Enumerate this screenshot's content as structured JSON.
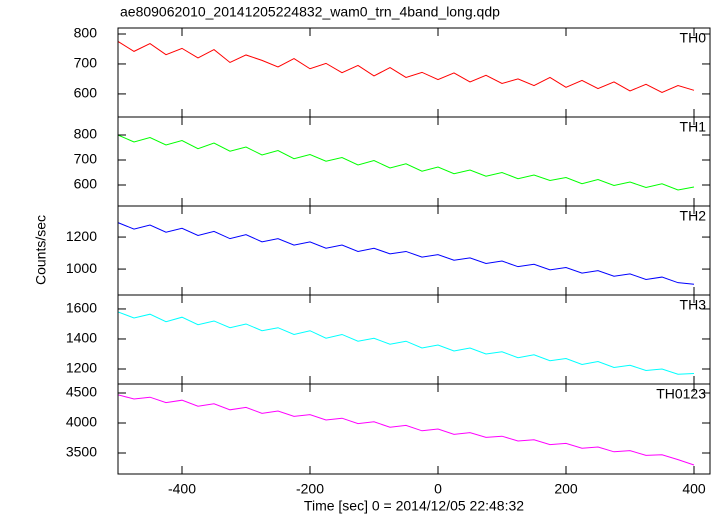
{
  "title": "ae809062010_20141205224832_wam0_trn_4band_long.qdp",
  "xlabel": "Time [sec] 0 = 2014/12/05 22:48:32",
  "ylabel": "Counts/sec",
  "chart_data": [
    {
      "type": "line",
      "label": "TH0",
      "color": "#ff0000",
      "xlim": [
        -500,
        425
      ],
      "xticks": [
        -400,
        -200,
        0,
        200,
        400
      ],
      "ylim": [
        523,
        820
      ],
      "yticks": [
        600,
        700,
        800
      ],
      "x": [
        -500,
        -475,
        -450,
        -425,
        -400,
        -375,
        -350,
        -325,
        -300,
        -275,
        -250,
        -225,
        -200,
        -175,
        -150,
        -125,
        -100,
        -75,
        -50,
        -25,
        0,
        25,
        50,
        75,
        100,
        125,
        150,
        175,
        200,
        225,
        250,
        275,
        300,
        325,
        350,
        375,
        400
      ],
      "values": [
        775,
        742,
        768,
        731,
        752,
        720,
        748,
        705,
        730,
        712,
        690,
        718,
        684,
        702,
        671,
        695,
        660,
        688,
        655,
        672,
        648,
        670,
        640,
        662,
        635,
        650,
        628,
        655,
        622,
        645,
        618,
        640,
        610,
        632,
        605,
        628,
        612
      ]
    },
    {
      "type": "line",
      "label": "TH1",
      "color": "#00ff00",
      "xlim": [
        -500,
        425
      ],
      "xticks": [
        -400,
        -200,
        0,
        200,
        400
      ],
      "ylim": [
        516,
        872
      ],
      "yticks": [
        600,
        700,
        800
      ],
      "x": [
        -500,
        -475,
        -450,
        -425,
        -400,
        -375,
        -350,
        -325,
        -300,
        -275,
        -250,
        -225,
        -200,
        -175,
        -150,
        -125,
        -100,
        -75,
        -50,
        -25,
        0,
        25,
        50,
        75,
        100,
        125,
        150,
        175,
        200,
        225,
        250,
        275,
        300,
        325,
        350,
        375,
        400
      ],
      "values": [
        800,
        772,
        790,
        760,
        778,
        745,
        768,
        735,
        752,
        720,
        738,
        705,
        722,
        695,
        710,
        680,
        698,
        668,
        685,
        655,
        672,
        645,
        660,
        635,
        650,
        625,
        640,
        618,
        630,
        605,
        622,
        598,
        612,
        590,
        605,
        580,
        592
      ]
    },
    {
      "type": "line",
      "label": "TH2",
      "color": "#0000ff",
      "xlim": [
        -500,
        425
      ],
      "xticks": [
        -400,
        -200,
        0,
        200,
        400
      ],
      "ylim": [
        838,
        1394
      ],
      "yticks": [
        1000,
        1200
      ],
      "x": [
        -500,
        -475,
        -450,
        -425,
        -400,
        -375,
        -350,
        -325,
        -300,
        -275,
        -250,
        -225,
        -200,
        -175,
        -150,
        -125,
        -100,
        -75,
        -50,
        -25,
        0,
        25,
        50,
        75,
        100,
        125,
        150,
        175,
        200,
        225,
        250,
        275,
        300,
        325,
        350,
        375,
        400
      ],
      "values": [
        1290,
        1250,
        1275,
        1230,
        1255,
        1210,
        1235,
        1190,
        1215,
        1170,
        1190,
        1150,
        1170,
        1130,
        1150,
        1110,
        1130,
        1095,
        1110,
        1075,
        1090,
        1055,
        1070,
        1035,
        1050,
        1015,
        1030,
        995,
        1010,
        975,
        990,
        955,
        970,
        935,
        950,
        915,
        905
      ]
    },
    {
      "type": "line",
      "label": "TH3",
      "color": "#00ffff",
      "xlim": [
        -500,
        425
      ],
      "xticks": [
        -400,
        -200,
        0,
        200,
        400
      ],
      "ylim": [
        1100,
        1693
      ],
      "yticks": [
        1200,
        1400,
        1600
      ],
      "x": [
        -500,
        -475,
        -450,
        -425,
        -400,
        -375,
        -350,
        -325,
        -300,
        -275,
        -250,
        -225,
        -200,
        -175,
        -150,
        -125,
        -100,
        -75,
        -50,
        -25,
        0,
        25,
        50,
        75,
        100,
        125,
        150,
        175,
        200,
        225,
        250,
        275,
        300,
        325,
        350,
        375,
        400
      ],
      "values": [
        1580,
        1540,
        1565,
        1515,
        1545,
        1495,
        1520,
        1475,
        1500,
        1455,
        1475,
        1430,
        1455,
        1405,
        1430,
        1385,
        1405,
        1365,
        1385,
        1340,
        1360,
        1320,
        1340,
        1300,
        1315,
        1275,
        1295,
        1255,
        1270,
        1230,
        1250,
        1210,
        1225,
        1190,
        1200,
        1165,
        1170
      ]
    },
    {
      "type": "line",
      "label": "TH0123",
      "color": "#ff00ff",
      "xlim": [
        -500,
        425
      ],
      "xticks": [
        -400,
        -200,
        0,
        200,
        400
      ],
      "ylim": [
        3150,
        4650
      ],
      "yticks": [
        3500,
        4000,
        4500
      ],
      "x": [
        -500,
        -475,
        -450,
        -425,
        -400,
        -375,
        -350,
        -325,
        -300,
        -275,
        -250,
        -225,
        -200,
        -175,
        -150,
        -125,
        -100,
        -75,
        -50,
        -25,
        0,
        25,
        50,
        75,
        100,
        125,
        150,
        175,
        200,
        225,
        250,
        275,
        300,
        325,
        350,
        375,
        400
      ],
      "values": [
        4470,
        4400,
        4430,
        4340,
        4380,
        4280,
        4320,
        4220,
        4260,
        4160,
        4200,
        4110,
        4140,
        4050,
        4080,
        3990,
        4020,
        3930,
        3960,
        3870,
        3900,
        3810,
        3840,
        3760,
        3780,
        3700,
        3720,
        3640,
        3660,
        3580,
        3600,
        3520,
        3540,
        3460,
        3470,
        3390,
        3300
      ]
    }
  ]
}
